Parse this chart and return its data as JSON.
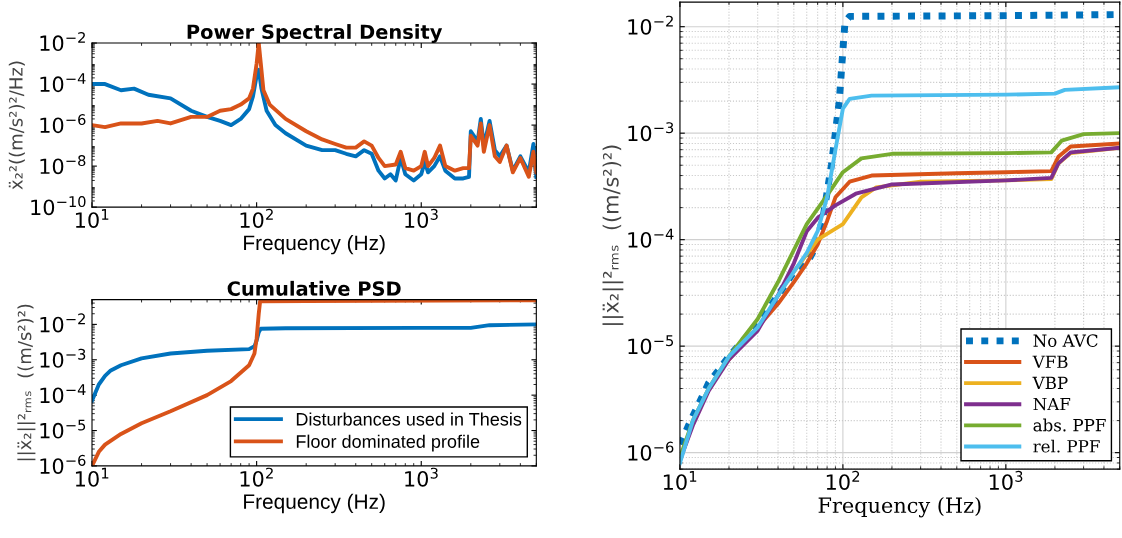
{
  "chart_data": [
    {
      "type": "line",
      "title": "Power Spectral Density",
      "xlabel": "Frequency (Hz)",
      "ylabel": "ẍ₂²((m/s²)²/Hz)",
      "log": "xy",
      "xlim": [
        10,
        5000
      ],
      "xticks": [
        {
          "value": 10,
          "label": "10$^{1}$"
        },
        {
          "value": 100,
          "label": "10$^{2}$"
        },
        {
          "value": 1000,
          "label": "10$^{3}$"
        }
      ],
      "ylim": [
        1e-10,
        0.01
      ],
      "yticks": [
        {
          "value": 1e-10,
          "label": "10$^{−10}$"
        },
        {
          "value": 1e-08,
          "label": "10$^{−8}$"
        },
        {
          "value": 1e-06,
          "label": "10$^{−6}$"
        },
        {
          "value": 0.0001,
          "label": "10$^{−4}$"
        },
        {
          "value": 0.01,
          "label": "10$^{−2}$"
        }
      ],
      "series": [
        {
          "color": "#0072bd",
          "x": [
            10,
            12,
            15,
            18,
            22,
            30,
            40,
            50,
            60,
            70,
            80,
            90,
            95,
            100,
            103,
            107,
            115,
            130,
            150,
            200,
            250,
            300,
            350,
            400,
            450,
            500,
            550,
            600,
            650,
            700,
            750,
            800,
            900,
            1000,
            1050,
            1100,
            1200,
            1300,
            1400,
            1600,
            1800,
            1950,
            2000,
            2200,
            2300,
            2400,
            2600,
            2800,
            3000,
            3300,
            3600,
            4000,
            4500,
            4800,
            5000
          ],
          "values": [
            0.0001,
            0.0001,
            5e-05,
            6e-05,
            3e-05,
            2e-05,
            5e-06,
            2.5e-06,
            1.6e-06,
            1e-06,
            2e-06,
            6e-06,
            2.5e-05,
            0.00025,
            0.0005,
            6e-05,
            5e-06,
            1e-06,
            4e-07,
            1e-07,
            6e-08,
            6e-08,
            4e-08,
            3e-08,
            6e-08,
            4e-08,
            6e-09,
            2.5e-09,
            4e-09,
            2e-09,
            2.5e-08,
            4e-09,
            2e-09,
            4e-09,
            1.6e-08,
            5e-09,
            1e-08,
            3e-08,
            6e-09,
            2.5e-09,
            2.5e-09,
            3e-09,
            5e-07,
            1.6e-07,
            2e-06,
            1e-07,
            1.6e-06,
            6e-08,
            3e-08,
            1e-07,
            6e-09,
            3e-08,
            5e-09,
            1.2e-07,
            3e-09
          ]
        },
        {
          "color": "#d95319",
          "x": [
            10,
            12,
            15,
            20,
            25,
            30,
            40,
            50,
            60,
            70,
            80,
            90,
            95,
            100,
            103,
            106,
            110,
            120,
            150,
            200,
            250,
            300,
            350,
            400,
            450,
            500,
            550,
            600,
            700,
            750,
            800,
            900,
            1000,
            1050,
            1100,
            1200,
            1300,
            1400,
            1600,
            1800,
            1950,
            2000,
            2200,
            2300,
            2400,
            2600,
            2800,
            3000,
            3300,
            3600,
            4000,
            4500,
            4800,
            5000
          ],
          "values": [
            1e-06,
            8e-07,
            1.2e-06,
            1.2e-06,
            1.6e-06,
            1.2e-06,
            2.5e-06,
            2.5e-06,
            5e-06,
            6e-06,
            1e-05,
            2e-05,
            6e-05,
            0.001,
            0.01,
            0.001,
            5e-05,
            1e-05,
            2e-06,
            5e-07,
            2e-07,
            1.2e-07,
            8e-08,
            8e-08,
            1.6e-07,
            1e-07,
            2.5e-08,
            1e-08,
            1.2e-08,
            5e-08,
            8e-09,
            6e-09,
            1e-08,
            5e-08,
            1e-08,
            2.5e-08,
            1e-07,
            1e-08,
            6e-09,
            8e-09,
            8e-09,
            3e-07,
            1e-07,
            1.2e-06,
            5e-08,
            1e-06,
            3e-08,
            1.6e-08,
            1e-07,
            5e-09,
            2.5e-08,
            3e-09,
            5e-08,
            5e-09
          ]
        }
      ]
    },
    {
      "type": "line",
      "title": "Cumulative PSD",
      "xlabel": "Frequency (Hz)",
      "ylabel": "||ẍ₂||²ᵣₘₛ  ((m/s²)²)",
      "log": "xy",
      "legend": "bottom right",
      "xlim": [
        10,
        5000
      ],
      "xticks": [
        {
          "value": 10,
          "label": "10$^{1}$"
        },
        {
          "value": 100,
          "label": "10$^{2}$"
        },
        {
          "value": 1000,
          "label": "10$^{3}$"
        }
      ],
      "ylim": [
        1e-06,
        0.05
      ],
      "yticks": [
        {
          "value": 1e-06,
          "label": "10$^{−6}$"
        },
        {
          "value": 1e-05,
          "label": "10$^{−5}$"
        },
        {
          "value": 0.0001,
          "label": "10$^{−4}$"
        },
        {
          "value": 0.001,
          "label": "10$^{−3}$"
        },
        {
          "value": 0.01,
          "label": "10$^{−2}$"
        }
      ],
      "series": [
        {
          "name": "Disturbances used in Thesis",
          "color": "#0072bd",
          "x": [
            10,
            11,
            12,
            13,
            15,
            20,
            30,
            50,
            90,
            97,
            100,
            103,
            106,
            150,
            1000,
            2000,
            2600,
            5000
          ],
          "values": [
            7e-05,
            0.0002,
            0.00035,
            0.0005,
            0.0007,
            0.0011,
            0.0015,
            0.0018,
            0.002,
            0.0024,
            0.0035,
            0.006,
            0.0075,
            0.0078,
            0.008,
            0.008,
            0.0095,
            0.01
          ]
        },
        {
          "name": "Floor dominated profile",
          "color": "#d95319",
          "x": [
            10,
            11,
            12,
            15,
            20,
            30,
            50,
            70,
            90,
            97,
            100,
            103,
            105,
            200,
            5000
          ],
          "values": [
            1e-06,
            2.5e-06,
            4e-06,
            8e-06,
            1.6e-05,
            3.5e-05,
            0.0001,
            0.00025,
            0.0007,
            0.0015,
            0.004,
            0.02,
            0.045,
            0.046,
            0.048
          ]
        }
      ]
    },
    {
      "type": "line",
      "xlabel": "Frequency (Hz)",
      "ylabel": "||ẍ₂||²ᵣₘₛ  ((m/s²)²)",
      "log": "xy",
      "legend": "bottom right",
      "grid": true,
      "xlim": [
        10,
        5000
      ],
      "xticks": [
        {
          "value": 10,
          "label": "10$^{1}$"
        },
        {
          "value": 100,
          "label": "10$^{2}$"
        },
        {
          "value": 1000,
          "label": "10$^{3}$"
        }
      ],
      "ylim": [
        7e-07,
        0.017
      ],
      "yticks": [
        {
          "value": 1e-06,
          "label": "10$^{−6}$"
        },
        {
          "value": 1e-05,
          "label": "10$^{−5}$"
        },
        {
          "value": 0.0001,
          "label": "10$^{−4}$"
        },
        {
          "value": 0.001,
          "label": "10$^{−3}$"
        },
        {
          "value": 0.01,
          "label": "10$^{−2}$"
        }
      ],
      "series": [
        {
          "name": "No AVC",
          "color": "#0072bd",
          "line_style": "dotted",
          "x": [
            10,
            12,
            15,
            20,
            30,
            40,
            50,
            60,
            65,
            75,
            85,
            95,
            100,
            103,
            110,
            1000,
            5000
          ],
          "values": [
            1.2e-06,
            2.2e-06,
            4.5e-06,
            8e-06,
            1.6e-05,
            3e-05,
            5e-05,
            6e-05,
            7.5e-05,
            0.00015,
            0.0005,
            0.002,
            0.006,
            0.011,
            0.0125,
            0.0127,
            0.013
          ]
        },
        {
          "name": "VFB",
          "color": "#d95319",
          "x": [
            20,
            30,
            40,
            50,
            60,
            70,
            80,
            90,
            110,
            150,
            500,
            1000,
            1900,
            2100,
            2500,
            5000
          ],
          "values": [
            7.5e-06,
            1.5e-05,
            2.5e-05,
            4e-05,
            6e-05,
            9e-05,
            0.00015,
            0.00025,
            0.00035,
            0.0004,
            0.00042,
            0.00043,
            0.00044,
            0.0006,
            0.00075,
            0.0008
          ]
        },
        {
          "name": "VBP",
          "color": "#edb120",
          "x": [
            40,
            50,
            70,
            100,
            130,
            160,
            300,
            1000,
            1900,
            2100,
            2500,
            5000
          ],
          "values": [
            3e-05,
            5e-05,
            0.0001,
            0.00014,
            0.00025,
            0.00031,
            0.00035,
            0.00036,
            0.00037,
            0.00052,
            0.00065,
            0.00073
          ]
        },
        {
          "name": "NAF",
          "color": "#7e2f8e",
          "x": [
            10,
            12,
            15,
            20,
            30,
            40,
            50,
            60,
            70,
            90,
            120,
            200,
            1000,
            1900,
            2100,
            2500,
            5000
          ],
          "values": [
            8.5e-07,
            1.8e-06,
            3.8e-06,
            7.5e-06,
            1.4e-05,
            3e-05,
            6e-05,
            0.00012,
            0.00016,
            0.00021,
            0.00027,
            0.00033,
            0.00036,
            0.00038,
            0.00052,
            0.00066,
            0.00073
          ]
        },
        {
          "name": "abs. PPF",
          "color": "#77ac30",
          "x": [
            10,
            12,
            15,
            20,
            30,
            40,
            50,
            60,
            80,
            100,
            130,
            200,
            1000,
            1900,
            2200,
            3000,
            5000
          ],
          "values": [
            9e-07,
            2e-06,
            4e-06,
            8e-06,
            1.8e-05,
            4e-05,
            8e-05,
            0.00014,
            0.00026,
            0.00043,
            0.00058,
            0.00064,
            0.00065,
            0.00066,
            0.00085,
            0.00098,
            0.001
          ]
        },
        {
          "name": "rel. PPF",
          "color": "#4dbeee",
          "x": [
            10,
            12,
            15,
            20,
            30,
            40,
            50,
            60,
            70,
            80,
            90,
            100,
            110,
            150,
            1000,
            2000,
            2300,
            5000
          ],
          "values": [
            8e-07,
            2e-06,
            4e-06,
            8e-06,
            1.5e-05,
            3e-05,
            5e-05,
            7.5e-05,
            0.00012,
            0.00025,
            0.0007,
            0.0017,
            0.0021,
            0.00225,
            0.0023,
            0.00235,
            0.00255,
            0.0027
          ]
        }
      ]
    }
  ]
}
